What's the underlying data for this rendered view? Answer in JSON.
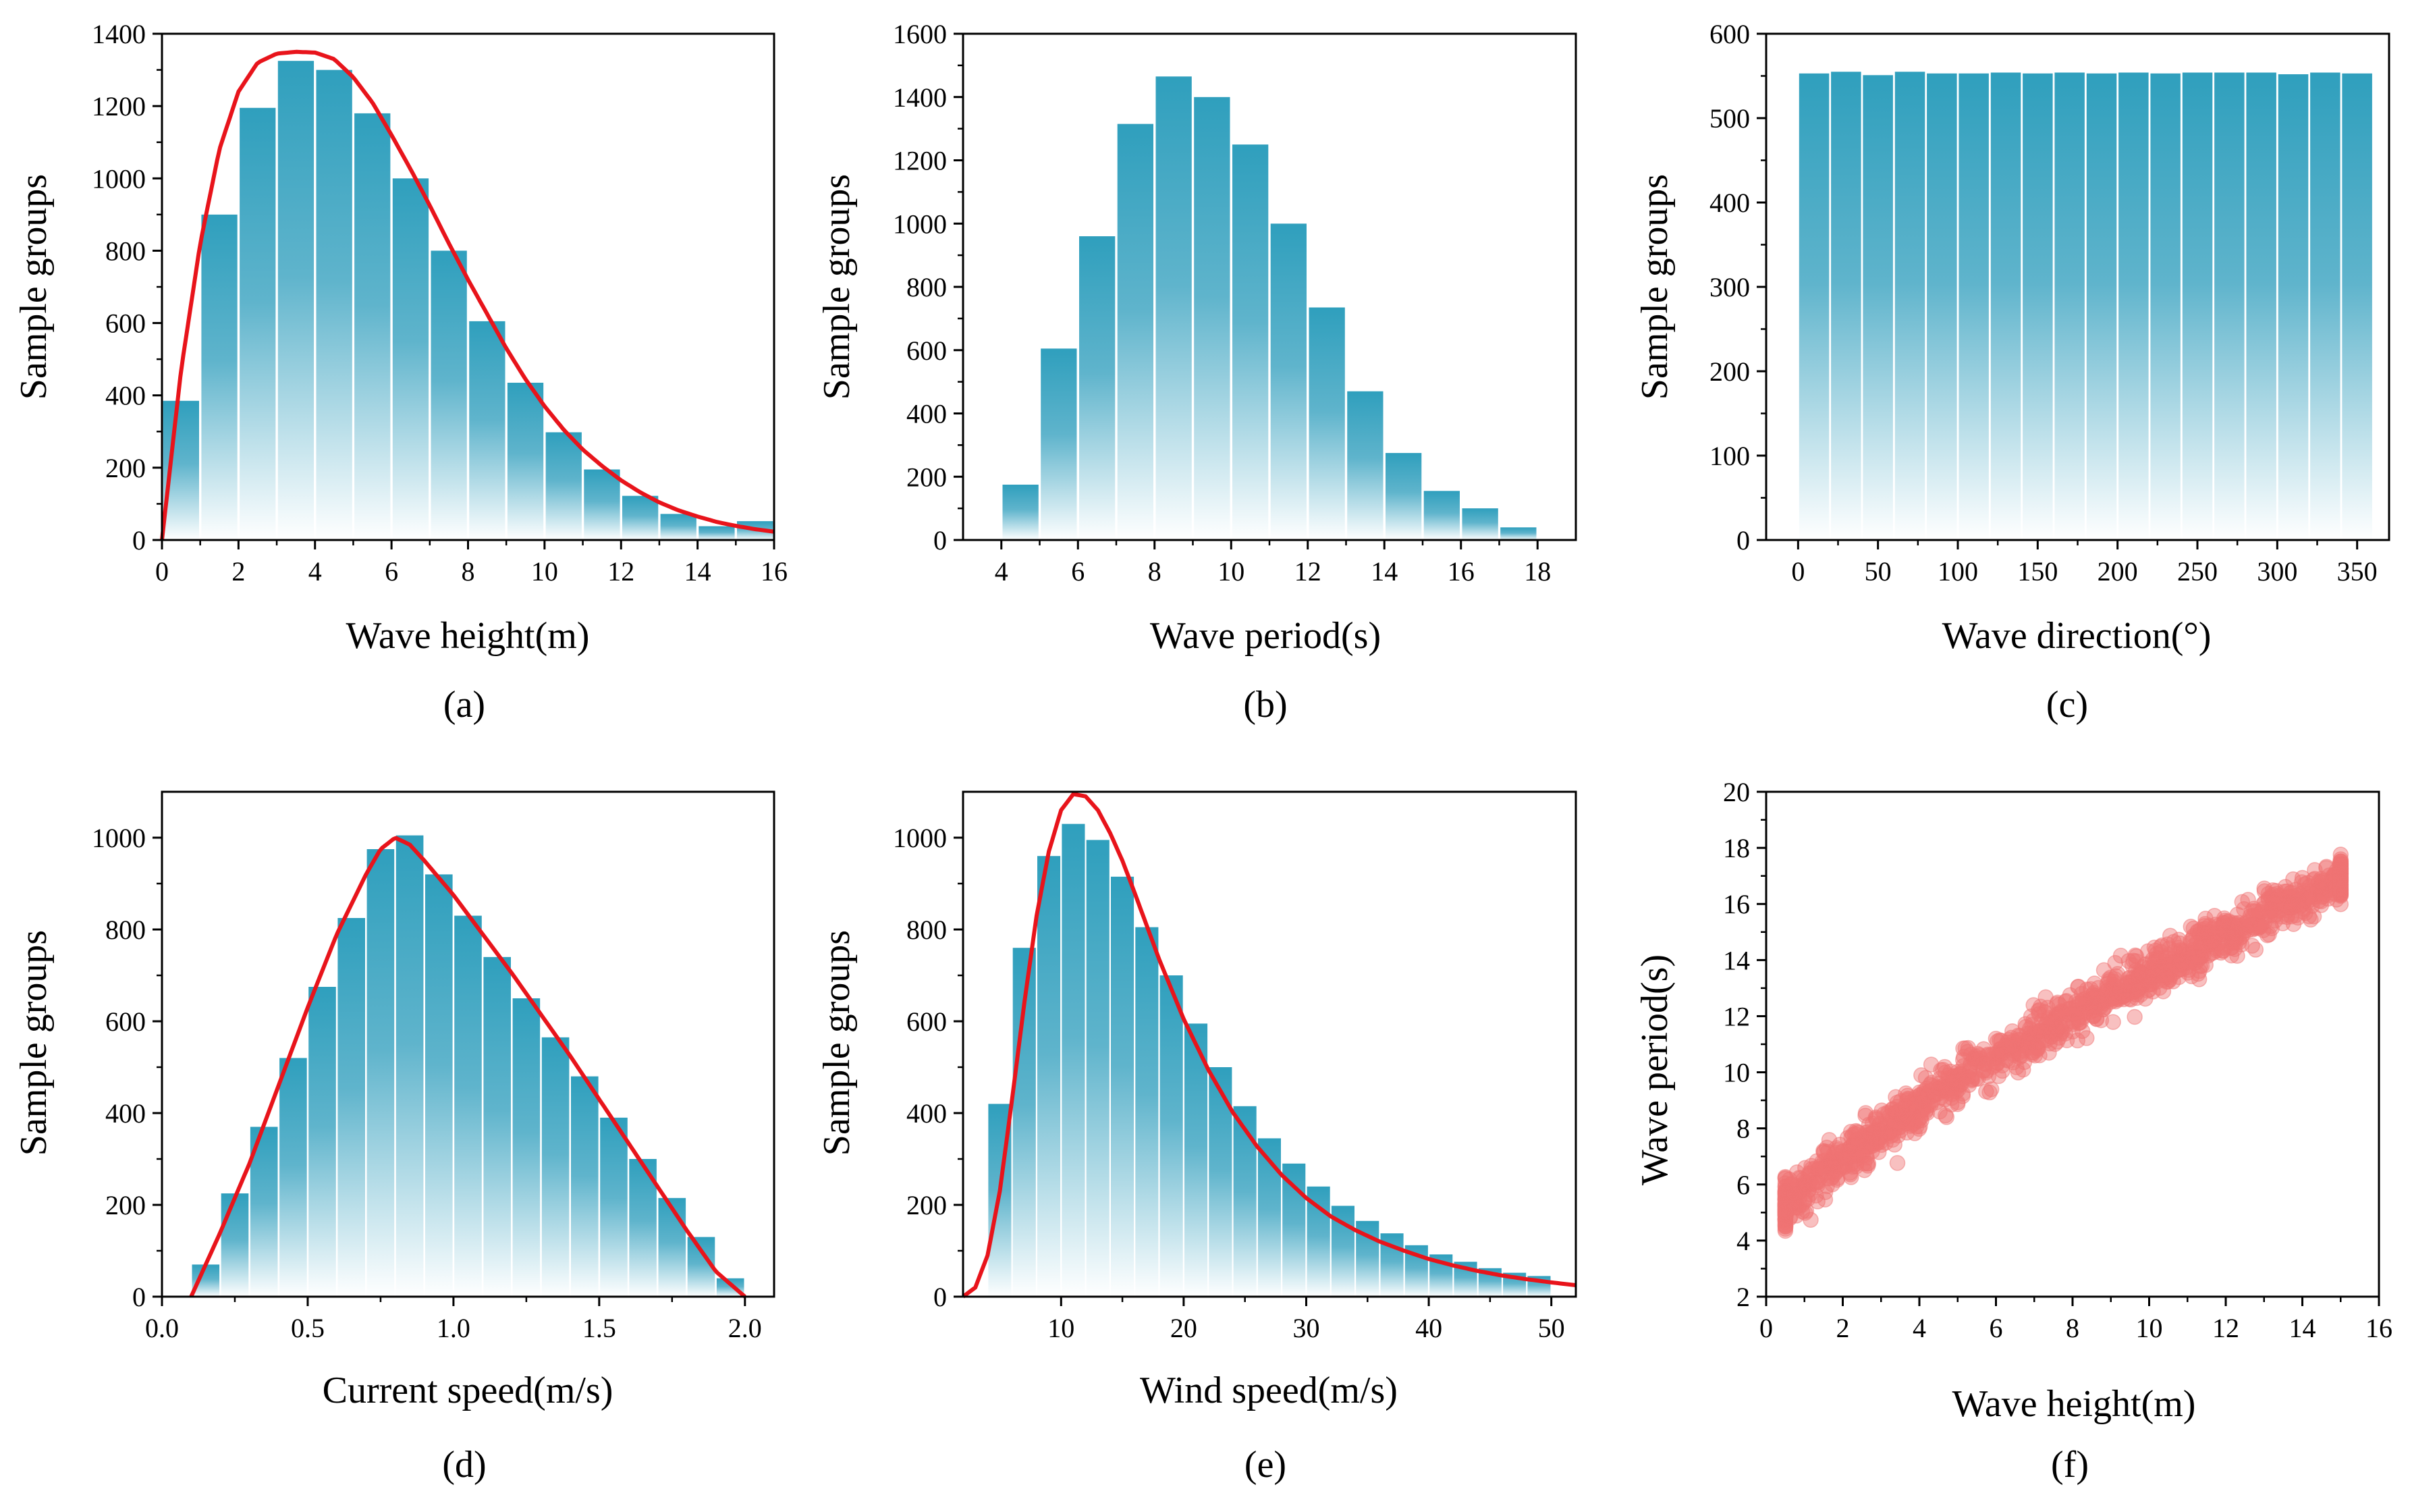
{
  "figure": {
    "background": "#ffffff"
  },
  "colors": {
    "bar_top": "#2f9fbd",
    "bar_bottom": "#ffffff",
    "curve": "#e8141b",
    "scatter": "#ef7474"
  },
  "chart_data": [
    {
      "id": "a",
      "panel_label": "(a)",
      "type": "bar",
      "xlabel": "Wave height(m)",
      "ylabel": "Sample groups",
      "xlim": [
        0,
        16
      ],
      "ylim": [
        0,
        1400
      ],
      "xticks": [
        0,
        2,
        4,
        6,
        8,
        10,
        12,
        14,
        16
      ],
      "yticks": [
        0,
        200,
        400,
        600,
        800,
        1000,
        1200,
        1400
      ],
      "bin_width": 1,
      "categories": [
        0.5,
        1.5,
        2.5,
        3.5,
        4.5,
        5.5,
        6.5,
        7.5,
        8.5,
        9.5,
        10.5,
        11.5,
        12.5,
        13.5,
        14.5,
        15.5
      ],
      "values": [
        385,
        900,
        1195,
        1325,
        1300,
        1180,
        1000,
        800,
        605,
        435,
        298,
        195,
        122,
        72,
        38,
        52
      ],
      "fit_curve": {
        "x": [
          0,
          0.5,
          1,
          1.5,
          2,
          2.5,
          3,
          3.5,
          4,
          4.5,
          5,
          5.5,
          6,
          6.5,
          7,
          7.5,
          8,
          8.5,
          9,
          9.5,
          10,
          10.5,
          11,
          11.5,
          12,
          12.5,
          13,
          13.5,
          14,
          14.5,
          15,
          15.5,
          16
        ],
        "y": [
          0,
          470,
          820,
          1080,
          1240,
          1320,
          1345,
          1350,
          1348,
          1330,
          1280,
          1210,
          1120,
          1025,
          925,
          820,
          720,
          625,
          530,
          445,
          370,
          305,
          250,
          205,
          165,
          132,
          104,
          82,
          65,
          50,
          39,
          30,
          23
        ]
      }
    },
    {
      "id": "b",
      "panel_label": "(b)",
      "type": "bar",
      "xlabel": "Wave period(s)",
      "ylabel": "Sample groups",
      "xlim": [
        3,
        19
      ],
      "ylim": [
        0,
        1600
      ],
      "xticks": [
        4,
        6,
        8,
        10,
        12,
        14,
        16,
        18
      ],
      "yticks": [
        0,
        200,
        400,
        600,
        800,
        1000,
        1200,
        1400,
        1600
      ],
      "bin_width": 1,
      "categories": [
        4.5,
        5.5,
        6.5,
        7.5,
        8.5,
        9.5,
        10.5,
        11.5,
        12.5,
        13.5,
        14.5,
        15.5,
        16.5,
        17.5
      ],
      "values": [
        175,
        605,
        960,
        1315,
        1465,
        1400,
        1250,
        1000,
        735,
        470,
        275,
        155,
        100,
        40
      ]
    },
    {
      "id": "c",
      "panel_label": "(c)",
      "type": "bar",
      "xlabel": "Wave direction(°)",
      "ylabel": "Sample groups",
      "xlim": [
        -20,
        370
      ],
      "ylim": [
        0,
        600
      ],
      "xticks": [
        0,
        50,
        100,
        150,
        200,
        250,
        300,
        350
      ],
      "yticks": [
        0,
        100,
        200,
        300,
        400,
        500,
        600
      ],
      "bin_width": 20,
      "categories": [
        10,
        30,
        50,
        70,
        90,
        110,
        130,
        150,
        170,
        190,
        210,
        230,
        250,
        270,
        290,
        310,
        330,
        350
      ],
      "values": [
        553,
        555,
        551,
        555,
        553,
        553,
        554,
        553,
        554,
        553,
        554,
        553,
        554,
        554,
        554,
        552,
        554,
        553
      ]
    },
    {
      "id": "d",
      "panel_label": "(d)",
      "type": "bar",
      "xlabel": "Current speed(m/s)",
      "ylabel": "Sample groups",
      "xlim": [
        0,
        2.1
      ],
      "ylim": [
        0,
        1100
      ],
      "xticks": [
        0,
        0.5,
        1.0,
        1.5,
        2.0
      ],
      "xtick_labels": [
        "0.0",
        "0.5",
        "1.0",
        "1.5",
        "2.0"
      ],
      "yticks": [
        0,
        200,
        400,
        600,
        800,
        1000
      ],
      "bin_width": 0.1,
      "categories": [
        0.15,
        0.25,
        0.35,
        0.45,
        0.55,
        0.65,
        0.75,
        0.85,
        0.95,
        1.05,
        1.15,
        1.25,
        1.35,
        1.45,
        1.55,
        1.65,
        1.75,
        1.85,
        1.95
      ],
      "values": [
        70,
        225,
        370,
        520,
        675,
        825,
        975,
        1005,
        920,
        830,
        740,
        650,
        565,
        480,
        390,
        300,
        215,
        130,
        40
      ],
      "fit_curve": {
        "x": [
          0.1,
          0.2,
          0.3,
          0.4,
          0.5,
          0.6,
          0.7,
          0.75,
          0.8,
          0.85,
          0.9,
          1.0,
          1.1,
          1.2,
          1.3,
          1.4,
          1.5,
          1.6,
          1.7,
          1.8,
          1.9,
          2.0
        ],
        "y": [
          0,
          140,
          290,
          460,
          630,
          790,
          920,
          975,
          1000,
          985,
          950,
          875,
          790,
          705,
          615,
          525,
          430,
          335,
          240,
          145,
          55,
          0
        ]
      }
    },
    {
      "id": "e",
      "panel_label": "(e)",
      "type": "bar",
      "xlabel": "Wind speed(m/s)",
      "ylabel": "Sample groups",
      "xlim": [
        2,
        52
      ],
      "ylim": [
        0,
        1100
      ],
      "xticks": [
        10,
        20,
        30,
        40,
        50
      ],
      "yticks": [
        0,
        200,
        400,
        600,
        800,
        1000
      ],
      "bin_width": 2,
      "categories": [
        5,
        7,
        9,
        11,
        13,
        15,
        17,
        19,
        21,
        23,
        25,
        27,
        29,
        31,
        33,
        35,
        37,
        39,
        41,
        43,
        45,
        47,
        49
      ],
      "values": [
        420,
        760,
        960,
        1030,
        995,
        915,
        805,
        700,
        595,
        500,
        415,
        345,
        290,
        240,
        198,
        165,
        138,
        112,
        92,
        76,
        62,
        52,
        45
      ],
      "fit_curve": {
        "x": [
          2,
          3,
          4,
          5,
          6,
          7,
          8,
          9,
          10,
          11,
          12,
          13,
          14,
          15,
          16,
          18,
          20,
          22,
          24,
          26,
          28,
          30,
          32,
          34,
          36,
          38,
          40,
          42,
          44,
          46,
          48,
          50,
          52
        ],
        "y": [
          0,
          20,
          90,
          230,
          430,
          640,
          830,
          970,
          1060,
          1095,
          1090,
          1060,
          1010,
          950,
          880,
          735,
          605,
          495,
          402,
          327,
          265,
          215,
          175,
          145,
          120,
          100,
          82,
          68,
          56,
          46,
          38,
          31,
          25
        ]
      }
    },
    {
      "id": "f",
      "panel_label": "(f)",
      "type": "scatter",
      "xlabel": "Wave height(m)",
      "ylabel": "Wave period(s)",
      "xlim": [
        0,
        16
      ],
      "ylim": [
        2,
        20
      ],
      "xticks": [
        0,
        2,
        4,
        6,
        8,
        10,
        12,
        14,
        16
      ],
      "yticks": [
        2,
        4,
        6,
        8,
        10,
        12,
        14,
        16,
        18,
        20
      ],
      "x_range": [
        0.5,
        15
      ],
      "trend": {
        "x": [
          0.5,
          1,
          2,
          3,
          4,
          5,
          6,
          7,
          8,
          9,
          10,
          11,
          12,
          13,
          14,
          15
        ],
        "y": [
          5.2,
          5.8,
          6.9,
          7.9,
          8.8,
          9.7,
          10.5,
          11.3,
          12.1,
          12.8,
          13.5,
          14.2,
          14.9,
          15.6,
          16.3,
          17.0
        ]
      },
      "spread": 0.6
    }
  ]
}
